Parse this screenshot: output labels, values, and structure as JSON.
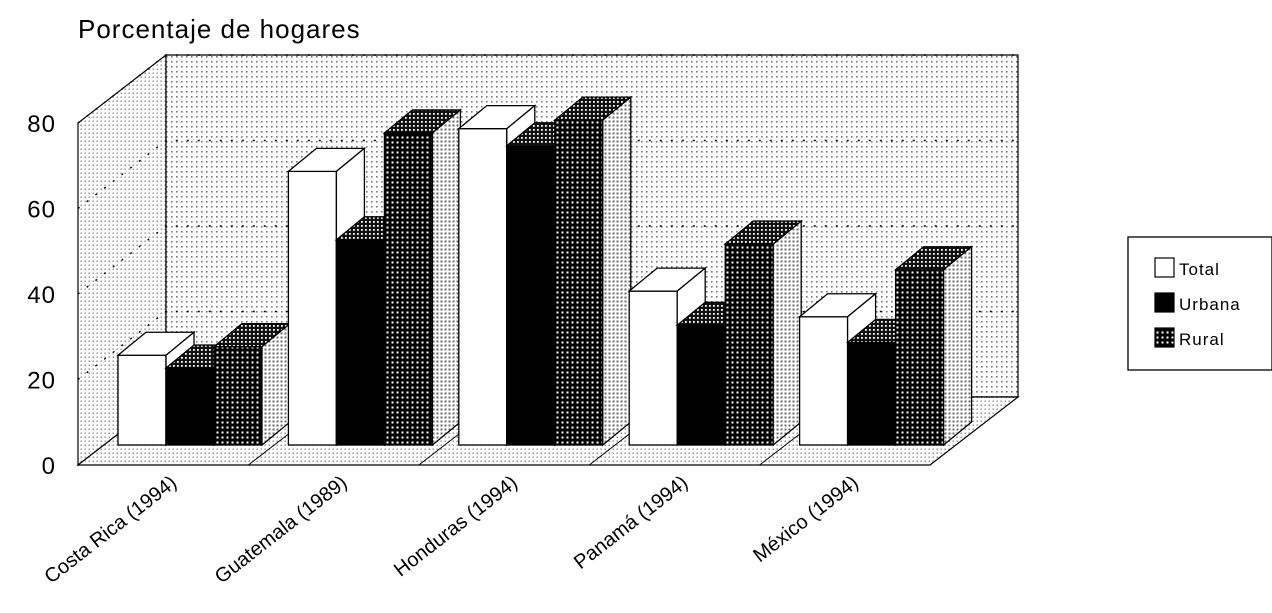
{
  "chart_data": {
    "type": "bar",
    "ylabel": "Porcentaje de hogares",
    "ylim": [
      0,
      80
    ],
    "yticks": [
      0,
      20,
      40,
      60,
      80
    ],
    "categories": [
      "Costa Rica (1994)",
      "Guatemala (1989)",
      "Honduras (1994)",
      "Panamá (1994)",
      "México (1994)"
    ],
    "series": [
      {
        "name": "Total",
        "values": [
          21,
          64,
          74,
          36,
          30
        ],
        "color": "#ffffff"
      },
      {
        "name": "Urbana",
        "values": [
          18,
          48,
          70,
          28,
          24
        ],
        "color": "#000000"
      },
      {
        "name": "Rural",
        "values": [
          23,
          73,
          76,
          47,
          41
        ],
        "color": "#555555"
      }
    ],
    "grid": true,
    "legend_position": "right",
    "three_d": true
  }
}
